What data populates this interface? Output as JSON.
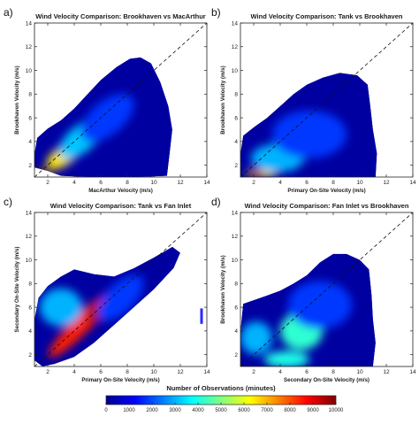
{
  "chart_data": [
    {
      "type": "heatmap",
      "panel_label": "a)",
      "title": "Wind Velocity Comparison: Brookhaven vs MacArthur",
      "xlabel": "MacArthur Velocity (m/s)",
      "ylabel": "Brookhaven Velocity (m/s)",
      "xlim": [
        1,
        14
      ],
      "ylim": [
        1,
        14
      ],
      "xticks": [
        "2",
        "4",
        "6",
        "8",
        "10",
        "12",
        "14"
      ],
      "yticks": [
        "2",
        "4",
        "6",
        "8",
        "10",
        "12",
        "14"
      ],
      "reference_line": "1:1 dashed",
      "outline": [
        [
          1,
          1.8
        ],
        [
          2,
          1.5
        ],
        [
          3,
          1.1
        ],
        [
          5,
          1
        ],
        [
          7,
          1
        ],
        [
          9,
          1
        ],
        [
          11,
          1.1
        ],
        [
          11.2,
          3
        ],
        [
          11.4,
          5
        ],
        [
          11.1,
          7
        ],
        [
          10.5,
          9
        ],
        [
          9.8,
          10.6
        ],
        [
          9,
          11.1
        ],
        [
          8.2,
          11
        ],
        [
          7.2,
          10.3
        ],
        [
          6,
          9.2
        ],
        [
          5,
          8
        ],
        [
          4,
          6.8
        ],
        [
          3,
          5.8
        ],
        [
          2,
          5.1
        ],
        [
          1.2,
          4.3
        ],
        [
          1,
          3
        ]
      ],
      "hotspots": [
        {
          "x": 1.6,
          "y": 1.4,
          "sx": 0.7,
          "sy": 0.25,
          "intensity": 10000
        },
        {
          "x": 3.2,
          "y": 2.8,
          "sx": 1.5,
          "sy": 0.8,
          "intensity": 6500,
          "rot": -35
        },
        {
          "x": 4.5,
          "y": 4.2,
          "sx": 2.0,
          "sy": 1.1,
          "intensity": 3200,
          "rot": -40
        },
        {
          "x": 6.5,
          "y": 6.0,
          "sx": 2.4,
          "sy": 1.4,
          "intensity": 1800,
          "rot": -40
        }
      ]
    },
    {
      "type": "heatmap",
      "panel_label": "b)",
      "title": "Wind Velocity Comparison: Tank vs Brookhaven",
      "xlabel": "Primary On-Site Velocity (m/s)",
      "ylabel": "Brookhaven Velocity (m/s)",
      "xlim": [
        1,
        14
      ],
      "ylim": [
        1,
        14
      ],
      "xticks": [
        "2",
        "4",
        "6",
        "8",
        "10",
        "12",
        "14"
      ],
      "yticks": [
        "2",
        "4",
        "6",
        "8",
        "10",
        "12",
        "14"
      ],
      "reference_line": "1:1 dashed",
      "outline": [
        [
          1,
          1
        ],
        [
          3,
          1
        ],
        [
          6,
          1
        ],
        [
          9,
          1
        ],
        [
          11.2,
          1
        ],
        [
          11.3,
          3
        ],
        [
          11,
          5
        ],
        [
          10.8,
          7
        ],
        [
          10.6,
          8.8
        ],
        [
          9.8,
          9.6
        ],
        [
          8.5,
          9.8
        ],
        [
          7.2,
          9.4
        ],
        [
          6,
          8.8
        ],
        [
          5,
          8
        ],
        [
          4,
          7
        ],
        [
          3,
          6
        ],
        [
          2,
          5.2
        ],
        [
          1.2,
          4.5
        ],
        [
          1,
          3
        ]
      ],
      "hotspots": [
        {
          "x": 2.6,
          "y": 1.3,
          "sx": 1.2,
          "sy": 0.3,
          "intensity": 6500
        },
        {
          "x": 2.2,
          "y": 1.25,
          "sx": 0.5,
          "sy": 0.2,
          "intensity": 9000
        },
        {
          "x": 3.8,
          "y": 2.6,
          "sx": 2.0,
          "sy": 1.2,
          "intensity": 3000
        },
        {
          "x": 6.2,
          "y": 4.6,
          "sx": 2.8,
          "sy": 2.0,
          "intensity": 1800
        }
      ]
    },
    {
      "type": "heatmap",
      "panel_label": "c)",
      "title": "Wind Velocity Comparison: Tank vs Fan Inlet",
      "xlabel": "Primary On-Site Velocity (m/s)",
      "ylabel": "Secondary On-Site Velocity (m/s)",
      "xlim": [
        1,
        14
      ],
      "ylim": [
        1,
        14
      ],
      "xticks": [
        "2",
        "4",
        "6",
        "8",
        "10",
        "12",
        "14"
      ],
      "yticks": [
        "2",
        "4",
        "6",
        "8",
        "10",
        "12",
        "14"
      ],
      "reference_line": "1:1 dashed",
      "outline": [
        [
          1,
          1.5
        ],
        [
          1.6,
          1
        ],
        [
          2.5,
          1.2
        ],
        [
          4,
          1.8
        ],
        [
          5.5,
          3
        ],
        [
          7,
          4.5
        ],
        [
          8.5,
          6
        ],
        [
          10,
          7.5
        ],
        [
          11.5,
          9.3
        ],
        [
          12,
          10.6
        ],
        [
          11.4,
          11.1
        ],
        [
          10,
          10.2
        ],
        [
          8.5,
          9.3
        ],
        [
          7,
          8.6
        ],
        [
          5.5,
          8.8
        ],
        [
          4,
          9.2
        ],
        [
          3,
          8.6
        ],
        [
          2,
          7.8
        ],
        [
          1.3,
          6.8
        ],
        [
          1,
          5
        ]
      ],
      "hotspots": [
        {
          "x": 4.5,
          "y": 4.5,
          "sx": 3.4,
          "sy": 0.75,
          "intensity": 8500,
          "rot": -45
        },
        {
          "x": 6.1,
          "y": 6.1,
          "sx": 1.6,
          "sy": 0.45,
          "intensity": 9800,
          "rot": -45
        },
        {
          "x": 3.0,
          "y": 6.0,
          "sx": 1.6,
          "sy": 1.6,
          "intensity": 3000
        },
        {
          "x": 7.5,
          "y": 6.8,
          "sx": 2.2,
          "sy": 1.2,
          "intensity": 1800,
          "rot": -45
        }
      ],
      "extra_segment": {
        "x": 13.6,
        "y1": 4.6,
        "y2": 5.9
      }
    },
    {
      "type": "heatmap",
      "panel_label": "d)",
      "title": "Wind Velocity Comparison: Fan Inlet vs Brookhaven",
      "xlabel": "Secondary On-Site Velocity (m/s)",
      "ylabel": "Brookhaven Velocity (m/s)",
      "xlim": [
        1,
        14
      ],
      "ylim": [
        1,
        14
      ],
      "xticks": [
        "2",
        "4",
        "6",
        "8",
        "10",
        "12",
        "14"
      ],
      "yticks": [
        "2",
        "4",
        "6",
        "8",
        "10",
        "12",
        "14"
      ],
      "reference_line": "1:1 dashed",
      "outline": [
        [
          1,
          1
        ],
        [
          3,
          1
        ],
        [
          6,
          1
        ],
        [
          9,
          1
        ],
        [
          11,
          1
        ],
        [
          11.2,
          3
        ],
        [
          11,
          5
        ],
        [
          10.9,
          7
        ],
        [
          10.7,
          9.2
        ],
        [
          10,
          10
        ],
        [
          9,
          10.5
        ],
        [
          8,
          10.5
        ],
        [
          7,
          9.8
        ],
        [
          6,
          8.7
        ],
        [
          5,
          8
        ],
        [
          4,
          7.4
        ],
        [
          3,
          7
        ],
        [
          2,
          6.6
        ],
        [
          1.2,
          6.3
        ],
        [
          1,
          4
        ]
      ],
      "hotspots": [
        {
          "x": 4.1,
          "y": 1.2,
          "sx": 0.9,
          "sy": 0.25,
          "intensity": 9000
        },
        {
          "x": 4.5,
          "y": 1.6,
          "sx": 1.7,
          "sy": 0.7,
          "intensity": 4000
        },
        {
          "x": 5.6,
          "y": 4.0,
          "sx": 1.6,
          "sy": 1.6,
          "intensity": 4200
        },
        {
          "x": 2.2,
          "y": 3.4,
          "sx": 1.2,
          "sy": 1.4,
          "intensity": 3000
        },
        {
          "x": 7.0,
          "y": 6.2,
          "sx": 2.4,
          "sy": 2.0,
          "intensity": 1800
        }
      ]
    }
  ],
  "colorbar": {
    "title": "Number of Observations (minutes)",
    "min": 0,
    "max": 10000,
    "ticks": [
      "0",
      "1000",
      "2000",
      "3000",
      "4000",
      "5000",
      "6000",
      "7000",
      "8000",
      "9000",
      "10000"
    ],
    "colormap": [
      "#00008f",
      "#0000ff",
      "#0080ff",
      "#00ffff",
      "#80ff80",
      "#ffff00",
      "#ff8000",
      "#ff0000",
      "#800000"
    ]
  }
}
